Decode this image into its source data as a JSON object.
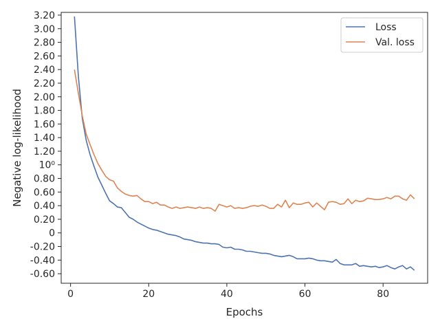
{
  "chart_data": {
    "type": "line",
    "title": "",
    "xlabel": "Epochs",
    "ylabel": "Negative log-likelihood",
    "xlim": [
      -2.4,
      91.4
    ],
    "ylim": [
      -0.74,
      3.24
    ],
    "grid": false,
    "legend_position": "top-right",
    "x_ticks": [
      0,
      20,
      40,
      60,
      80
    ],
    "x_tick_labels": [
      "0",
      "20",
      "40",
      "60",
      "80"
    ],
    "y_ticks": [
      -0.6,
      -0.4,
      -0.2,
      0,
      0.2,
      0.4,
      0.6,
      0.8,
      1.0,
      1.2,
      1.4,
      1.6,
      1.8,
      2.0,
      2.2,
      2.4,
      2.6,
      2.8,
      3.0,
      3.2
    ],
    "y_tick_labels": [
      "-0.60",
      "-0.40",
      "-0.20",
      "0",
      "0.20",
      "0.40",
      "0.60",
      "0.80",
      "10⁰",
      "1.20",
      "1.40",
      "1.60",
      "1.80",
      "2.00",
      "2.20",
      "2.40",
      "2.60",
      "2.80",
      "3.00",
      "3.20"
    ],
    "series": [
      {
        "name": "Loss",
        "color": "#4c72b0",
        "x": [
          1,
          2,
          3,
          4,
          5,
          6,
          7,
          8,
          9,
          10,
          11,
          12,
          13,
          14,
          15,
          16,
          17,
          18,
          19,
          20,
          21,
          22,
          23,
          24,
          25,
          26,
          27,
          28,
          29,
          30,
          31,
          32,
          33,
          34,
          35,
          36,
          37,
          38,
          39,
          40,
          41,
          42,
          43,
          44,
          45,
          46,
          47,
          48,
          49,
          50,
          51,
          52,
          53,
          54,
          55,
          56,
          57,
          58,
          59,
          60,
          61,
          62,
          63,
          64,
          65,
          66,
          67,
          68,
          69,
          70,
          71,
          72,
          73,
          74,
          75,
          76,
          77,
          78,
          79,
          80,
          81,
          82,
          83,
          84,
          85,
          86,
          87,
          88
        ],
        "y": [
          3.18,
          2.3,
          1.68,
          1.36,
          1.15,
          0.98,
          0.82,
          0.7,
          0.58,
          0.47,
          0.43,
          0.38,
          0.37,
          0.3,
          0.23,
          0.2,
          0.16,
          0.13,
          0.1,
          0.07,
          0.05,
          0.04,
          0.02,
          0.0,
          -0.02,
          -0.03,
          -0.04,
          -0.06,
          -0.09,
          -0.1,
          -0.11,
          -0.13,
          -0.14,
          -0.15,
          -0.15,
          -0.16,
          -0.16,
          -0.17,
          -0.21,
          -0.22,
          -0.21,
          -0.24,
          -0.24,
          -0.25,
          -0.27,
          -0.27,
          -0.28,
          -0.29,
          -0.3,
          -0.3,
          -0.31,
          -0.33,
          -0.34,
          -0.35,
          -0.34,
          -0.33,
          -0.35,
          -0.38,
          -0.38,
          -0.38,
          -0.37,
          -0.38,
          -0.4,
          -0.41,
          -0.41,
          -0.42,
          -0.43,
          -0.39,
          -0.45,
          -0.47,
          -0.47,
          -0.47,
          -0.45,
          -0.49,
          -0.48,
          -0.49,
          -0.5,
          -0.49,
          -0.51,
          -0.5,
          -0.48,
          -0.51,
          -0.53,
          -0.5,
          -0.48,
          -0.53,
          -0.5,
          -0.55
        ]
      },
      {
        "name": "Val. loss",
        "color": "#dd8452",
        "x": [
          1,
          2,
          3,
          4,
          5,
          6,
          7,
          8,
          9,
          10,
          11,
          12,
          13,
          14,
          15,
          16,
          17,
          18,
          19,
          20,
          21,
          22,
          23,
          24,
          25,
          26,
          27,
          28,
          29,
          30,
          31,
          32,
          33,
          34,
          35,
          36,
          37,
          38,
          39,
          40,
          41,
          42,
          43,
          44,
          45,
          46,
          47,
          48,
          49,
          50,
          51,
          52,
          53,
          54,
          55,
          56,
          57,
          58,
          59,
          60,
          61,
          62,
          63,
          64,
          65,
          66,
          67,
          68,
          69,
          70,
          71,
          72,
          73,
          74,
          75,
          76,
          77,
          78,
          79,
          80,
          81,
          82,
          83,
          84,
          85,
          86,
          87,
          88
        ],
        "y": [
          2.4,
          2.05,
          1.72,
          1.45,
          1.3,
          1.15,
          1.02,
          0.92,
          0.83,
          0.78,
          0.76,
          0.66,
          0.61,
          0.57,
          0.55,
          0.54,
          0.55,
          0.5,
          0.46,
          0.46,
          0.43,
          0.45,
          0.41,
          0.41,
          0.38,
          0.36,
          0.38,
          0.36,
          0.37,
          0.38,
          0.37,
          0.36,
          0.38,
          0.36,
          0.37,
          0.36,
          0.32,
          0.42,
          0.4,
          0.38,
          0.4,
          0.36,
          0.37,
          0.36,
          0.37,
          0.39,
          0.4,
          0.39,
          0.41,
          0.39,
          0.36,
          0.36,
          0.42,
          0.38,
          0.48,
          0.37,
          0.44,
          0.42,
          0.42,
          0.44,
          0.45,
          0.38,
          0.44,
          0.39,
          0.34,
          0.45,
          0.46,
          0.45,
          0.42,
          0.43,
          0.5,
          0.43,
          0.48,
          0.46,
          0.47,
          0.51,
          0.5,
          0.49,
          0.49,
          0.5,
          0.52,
          0.5,
          0.54,
          0.54,
          0.5,
          0.48,
          0.56,
          0.5
        ]
      }
    ]
  }
}
